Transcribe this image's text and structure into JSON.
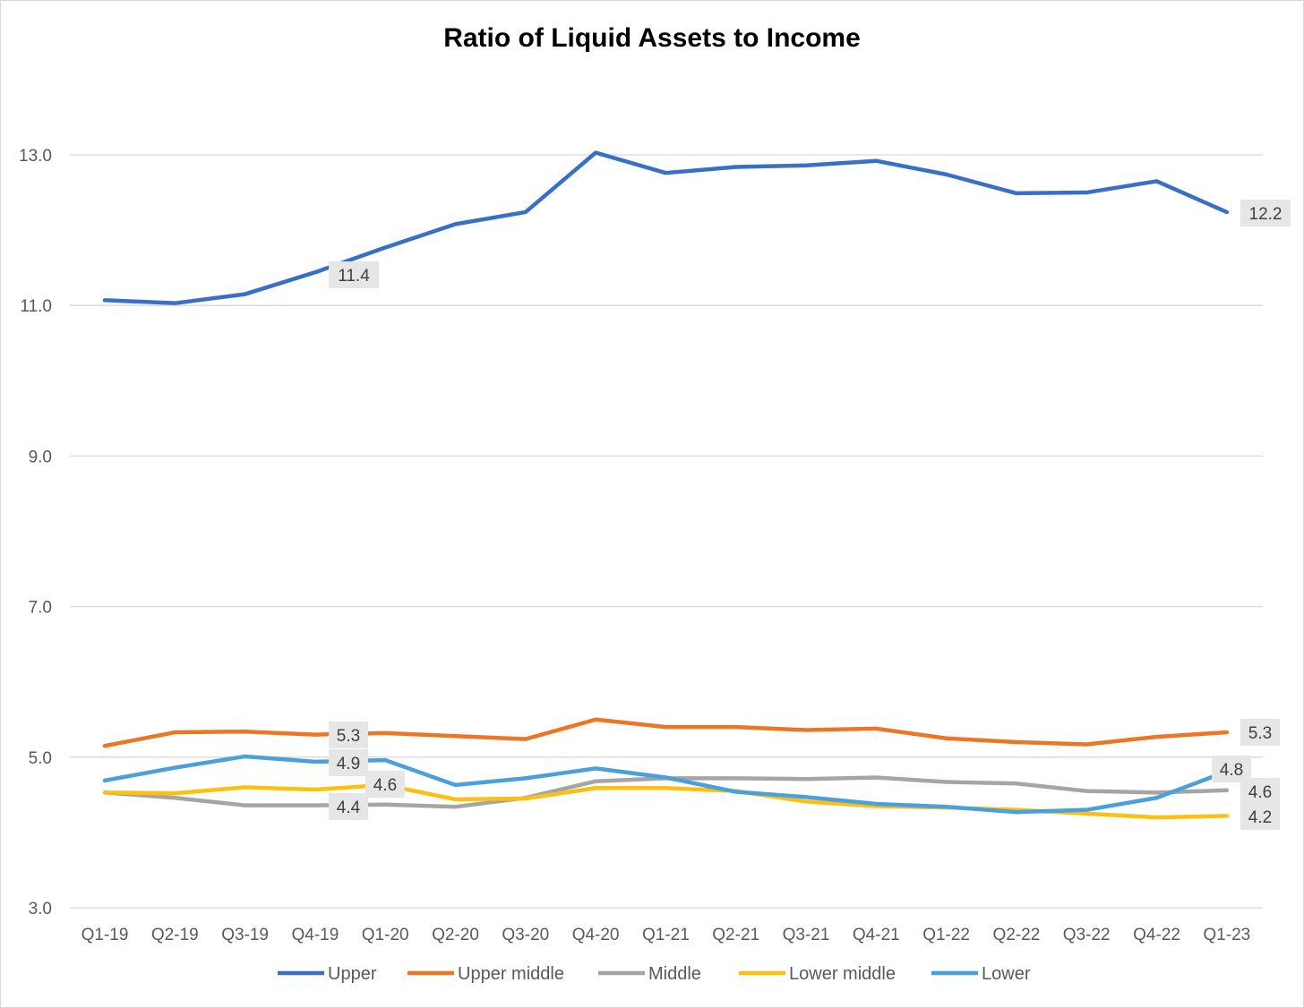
{
  "chart_data": {
    "type": "line",
    "title": "Ratio of Liquid Assets to Income",
    "xlabel": "",
    "ylabel": "",
    "ylim": [
      3.0,
      14.0
    ],
    "yticks": [
      "3.0",
      "5.0",
      "7.0",
      "9.0",
      "11.0",
      "13.0"
    ],
    "ytick_values": [
      3,
      5,
      7,
      9,
      11,
      13
    ],
    "grid": true,
    "legend_position": "bottom",
    "categories": [
      "Q1-19",
      "Q2-19",
      "Q3-19",
      "Q4-19",
      "Q1-20",
      "Q2-20",
      "Q3-20",
      "Q4-20",
      "Q1-21",
      "Q2-21",
      "Q3-21",
      "Q4-21",
      "Q1-22",
      "Q2-22",
      "Q3-22",
      "Q4-22",
      "Q1-23"
    ],
    "series": [
      {
        "name": "Upper",
        "color": "#3a6fc8",
        "values": [
          11.07,
          11.03,
          11.15,
          11.44,
          11.77,
          12.08,
          12.24,
          13.03,
          12.76,
          12.84,
          12.86,
          12.92,
          12.74,
          12.49,
          12.5,
          12.65,
          12.24
        ],
        "labels": [
          {
            "index": 3,
            "text": "11.4"
          },
          {
            "index": 16,
            "text": "12.2"
          }
        ]
      },
      {
        "name": "Upper middle",
        "color": "#ee7524",
        "values": [
          5.15,
          5.33,
          5.34,
          5.3,
          5.32,
          5.28,
          5.24,
          5.5,
          5.4,
          5.4,
          5.36,
          5.38,
          5.25,
          5.2,
          5.17,
          5.27,
          5.33
        ],
        "labels": [
          {
            "index": 3,
            "text": "5.3"
          },
          {
            "index": 16,
            "text": "5.3"
          }
        ]
      },
      {
        "name": "Middle",
        "color": "#a5a5a5",
        "values": [
          4.53,
          4.46,
          4.36,
          4.36,
          4.37,
          4.34,
          4.46,
          4.68,
          4.72,
          4.72,
          4.71,
          4.73,
          4.67,
          4.65,
          4.55,
          4.53,
          4.56
        ],
        "labels": [
          {
            "index": 3,
            "text": "4.4"
          },
          {
            "index": 16,
            "text": "4.6"
          }
        ]
      },
      {
        "name": "Lower middle",
        "color": "#fdc010",
        "values": [
          4.53,
          4.52,
          4.6,
          4.57,
          4.63,
          4.44,
          4.45,
          4.59,
          4.59,
          4.55,
          4.41,
          4.35,
          4.33,
          4.3,
          4.25,
          4.2,
          4.22
        ],
        "labels": [
          {
            "index": 3,
            "text": "4.6"
          },
          {
            "index": 16,
            "text": "4.2"
          }
        ]
      },
      {
        "name": "Lower",
        "color": "#4a9fdc",
        "values": [
          4.69,
          4.86,
          5.01,
          4.94,
          4.96,
          4.63,
          4.72,
          4.85,
          4.73,
          4.54,
          4.47,
          4.38,
          4.34,
          4.27,
          4.3,
          4.46,
          4.81
        ],
        "labels": [
          {
            "index": 3,
            "text": "4.9"
          },
          {
            "index": 16,
            "text": "4.8"
          }
        ]
      }
    ]
  }
}
